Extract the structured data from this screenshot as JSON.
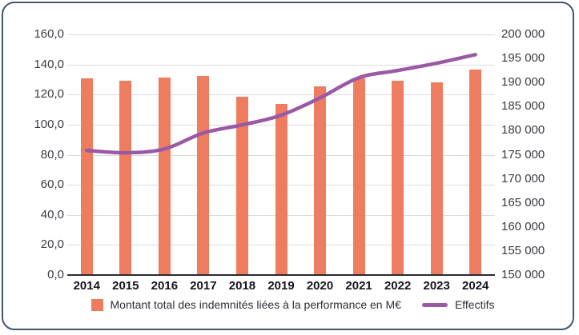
{
  "chart_data": {
    "type": "bar+line",
    "title": "",
    "categories": [
      "2014",
      "2015",
      "2016",
      "2017",
      "2018",
      "2019",
      "2020",
      "2021",
      "2022",
      "2023",
      "2024"
    ],
    "series": [
      {
        "name": "Montant total des indemnités liées à la performance en M€",
        "type": "bar",
        "axis": "left",
        "color": "#EE7D60",
        "values": [
          130.5,
          129.0,
          131.3,
          132.4,
          118.4,
          113.5,
          125.6,
          130.6,
          129.3,
          128.0,
          136.7
        ]
      },
      {
        "name": "Effectifs",
        "type": "line",
        "axis": "right",
        "color": "#9A59A5",
        "values": [
          175900,
          175400,
          176200,
          179500,
          181200,
          183200,
          186800,
          191000,
          192500,
          194000,
          195800
        ]
      }
    ],
    "left_axis": {
      "min": 0,
      "max": 160,
      "step": 20,
      "tick_labels": [
        "160,0",
        "140,0",
        "120,0",
        "100,0",
        "80,0",
        "60,0",
        "40,0",
        "20,0",
        "0,0"
      ]
    },
    "right_axis": {
      "min": 150000,
      "max": 200000,
      "step": 5000,
      "tick_labels": [
        "200 000",
        "195 000",
        "190 000",
        "185 000",
        "180 000",
        "175 000",
        "170 000",
        "165 000",
        "160 000",
        "155 000",
        "150 000"
      ]
    },
    "grid": "horizontal gridlines at left-axis ticks",
    "legend_position": "bottom",
    "colors": {
      "bar": "#EE7D60",
      "line": "#9A59A5",
      "frame_border": "#44546A",
      "gridline": "#DCDCDC",
      "axis_line": "#2A2A33",
      "tick_text": "#3A3A42",
      "year_text": "#14141E"
    }
  }
}
